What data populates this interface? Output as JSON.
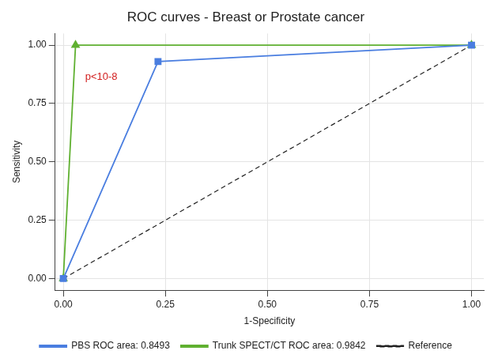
{
  "chart_data": {
    "type": "line",
    "title": "ROC curves - Breast or Prostate cancer",
    "x_label": "1-Specificity",
    "y_label": "Sensitivity",
    "series": [
      {
        "name": "PBS ROC area: 0.8493",
        "color": "#4a7ee0",
        "marker": "square",
        "line_style": "solid",
        "x": [
          0,
          0.232,
          1
        ],
        "values": [
          0,
          0.93,
          1
        ]
      },
      {
        "name": "Trunk SPECT/CT ROC area: 0.9842",
        "color": "#5fb030",
        "marker": "triangle",
        "line_style": "solid",
        "x": [
          0,
          0.03,
          1
        ],
        "values": [
          0,
          1,
          1
        ]
      },
      {
        "name": "Reference",
        "color": "#222222",
        "marker": "none",
        "line_style": "dashed",
        "x": [
          0,
          1
        ],
        "values": [
          0,
          1
        ]
      }
    ],
    "annotations": [
      {
        "text": "p<10-8",
        "color": "#d22020"
      }
    ],
    "xlim": [
      -0.02,
      1.03
    ],
    "ylim": [
      -0.05,
      1.05
    ],
    "xticks": [
      {
        "value": 0,
        "label": "0.00"
      },
      {
        "value": 0.25,
        "label": "0.25"
      },
      {
        "value": 0.5,
        "label": "0.50"
      },
      {
        "value": 0.75,
        "label": "0.75"
      },
      {
        "value": 1,
        "label": "1.00"
      }
    ],
    "yticks": [
      {
        "value": 0,
        "label": "0.00"
      },
      {
        "value": 0.25,
        "label": "0.25"
      },
      {
        "value": 0.5,
        "label": "0.50"
      },
      {
        "value": 0.75,
        "label": "0.75"
      },
      {
        "value": 1,
        "label": "1.00"
      }
    ],
    "grid": true,
    "legend": "bottom"
  }
}
